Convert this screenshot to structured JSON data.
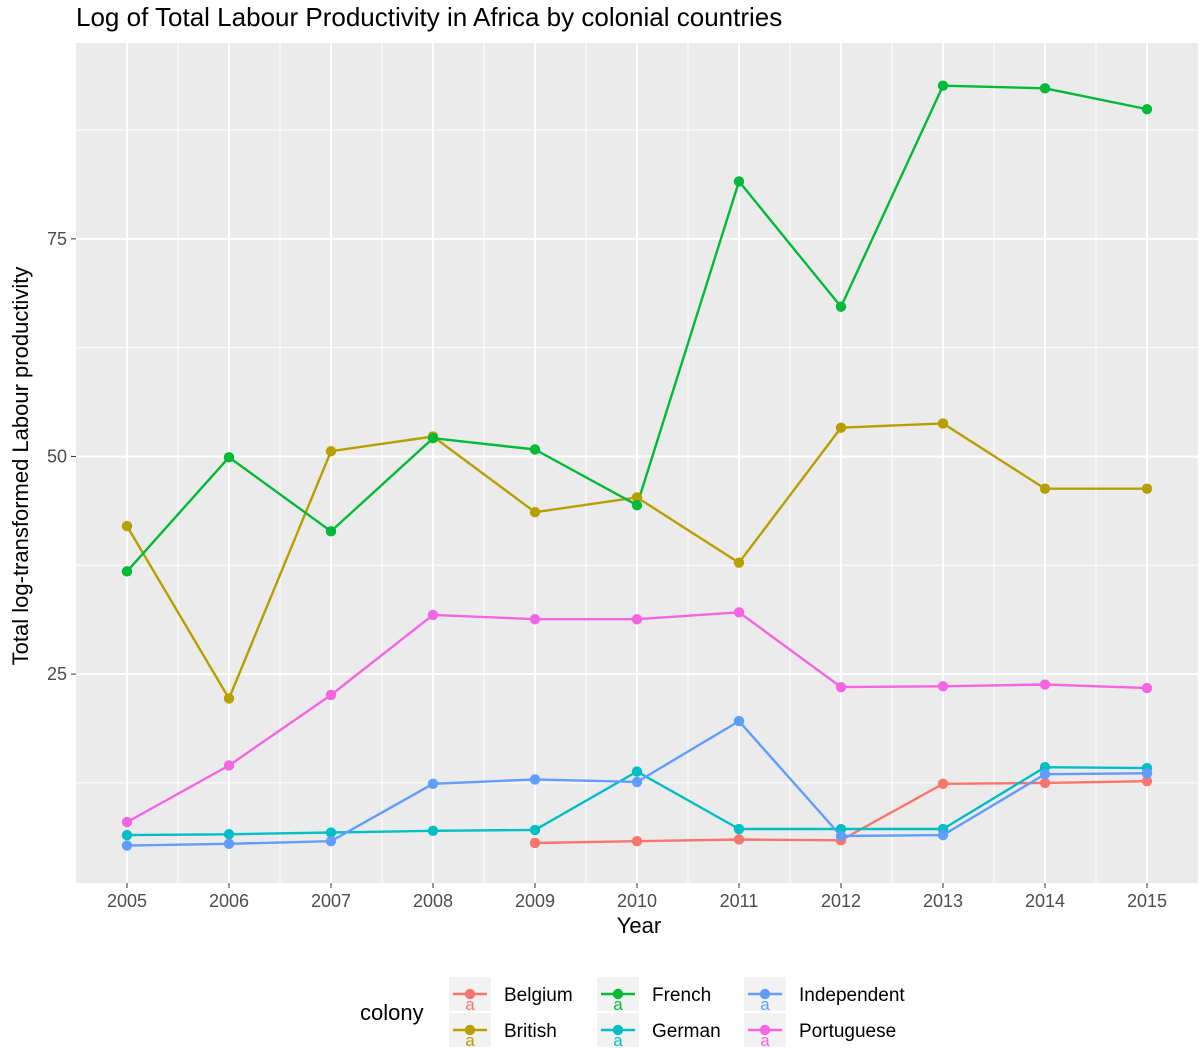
{
  "chart_data": {
    "type": "line",
    "title": "Log of Total Labour Productivity in Africa by colonial countries",
    "xlabel": "Year",
    "ylabel": "Total log-transformed Labour productivity",
    "x": [
      2005,
      2006,
      2007,
      2008,
      2009,
      2010,
      2011,
      2012,
      2013,
      2014,
      2015
    ],
    "x_tick_labels": [
      "2005",
      "2006",
      "2007",
      "2008",
      "2009",
      "2010",
      "2011",
      "2012",
      "2013",
      "2014",
      "2015"
    ],
    "y_ticks": [
      25,
      50,
      75
    ],
    "y_tick_labels": [
      "25",
      "50",
      "75"
    ],
    "xlim": [
      2004.5,
      2015.5
    ],
    "ylim": [
      1.0,
      97.5
    ],
    "grid": true,
    "legend": {
      "title": "colony",
      "position": "bottom",
      "glyph_letter": "a"
    },
    "series": [
      {
        "name": "Belgium",
        "color": "#F8766D",
        "values": [
          null,
          null,
          null,
          null,
          5.6,
          5.8,
          6.0,
          5.9,
          12.4,
          12.5,
          12.7
        ]
      },
      {
        "name": "British",
        "color": "#B79F00",
        "values": [
          42.0,
          22.2,
          50.6,
          52.3,
          43.6,
          45.3,
          37.8,
          53.3,
          53.8,
          46.3,
          46.3
        ]
      },
      {
        "name": "French",
        "color": "#00BA38",
        "values": [
          36.8,
          49.9,
          41.4,
          52.1,
          50.8,
          44.4,
          81.6,
          67.2,
          92.6,
          92.3,
          89.9
        ]
      },
      {
        "name": "German",
        "color": "#00BFC4",
        "values": [
          6.5,
          6.6,
          6.8,
          7.0,
          7.1,
          13.8,
          7.2,
          7.2,
          7.2,
          14.3,
          14.2
        ]
      },
      {
        "name": "Independent",
        "color": "#619CFF",
        "values": [
          5.3,
          5.5,
          5.8,
          12.4,
          12.9,
          12.6,
          19.6,
          6.4,
          6.5,
          13.5,
          13.6
        ]
      },
      {
        "name": "Portuguese",
        "color": "#F564E3",
        "values": [
          8.0,
          14.5,
          22.6,
          31.8,
          31.3,
          31.3,
          32.1,
          23.5,
          23.6,
          23.8,
          23.4
        ]
      }
    ]
  }
}
